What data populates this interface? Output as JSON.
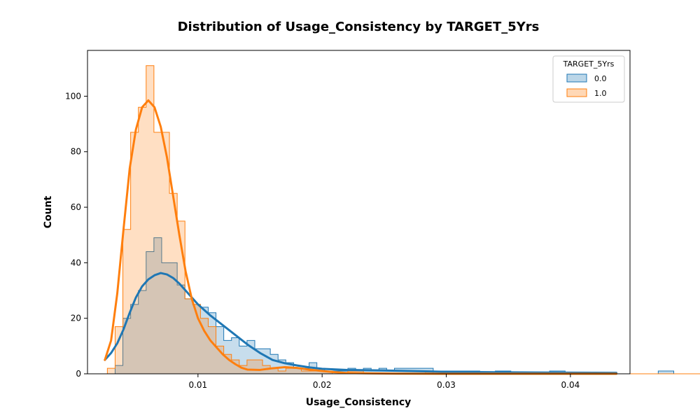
{
  "chart_data": {
    "type": "histogram",
    "title": "Distribution of Usage_Consistency by TARGET_5Yrs",
    "xlabel": "Usage_Consistency",
    "ylabel": "Count",
    "xlim": [
      0.0011,
      0.0448
    ],
    "ylim": [
      0,
      116.5
    ],
    "xticks": [
      0.01,
      0.02,
      0.03,
      0.04
    ],
    "xtick_labels": [
      "0.01",
      "0.02",
      "0.03",
      "0.04"
    ],
    "yticks": [
      0,
      20,
      40,
      60,
      80,
      100
    ],
    "ytick_labels": [
      "0",
      "20",
      "40",
      "60",
      "80",
      "100"
    ],
    "grid": false,
    "legend": {
      "title": "TARGET_5Yrs",
      "placement": "top-right"
    },
    "bin_start": 0.0027,
    "bin_width": 0.000625,
    "series": [
      {
        "name": "0.0",
        "color": "#1f77b4",
        "fill_alpha": 0.25,
        "counts": [
          0,
          3,
          20,
          25,
          30,
          44,
          49,
          40,
          40,
          32,
          27,
          25,
          24,
          22,
          17,
          12,
          13,
          10,
          12,
          9,
          9,
          7,
          5,
          4,
          2,
          2,
          4,
          2,
          1,
          1,
          1,
          2,
          1,
          2,
          1,
          2,
          1,
          2,
          2,
          2,
          2,
          2,
          1,
          1,
          1,
          1,
          1,
          1,
          0,
          0,
          1,
          1,
          0,
          0,
          0,
          0,
          0,
          1,
          1,
          0,
          0,
          0,
          0,
          0,
          0,
          0,
          0,
          0,
          0,
          0,
          0,
          1,
          1,
          0,
          0,
          0,
          0,
          0,
          0,
          0,
          0,
          0,
          1
        ],
        "kde": [
          [
            0.0025,
            5
          ],
          [
            0.003,
            7.5
          ],
          [
            0.0035,
            11
          ],
          [
            0.004,
            16
          ],
          [
            0.0045,
            22
          ],
          [
            0.005,
            27.5
          ],
          [
            0.0055,
            31.5
          ],
          [
            0.006,
            34
          ],
          [
            0.0065,
            35.5
          ],
          [
            0.007,
            36.3
          ],
          [
            0.0075,
            35.8
          ],
          [
            0.008,
            34.5
          ],
          [
            0.0085,
            32.5
          ],
          [
            0.009,
            30
          ],
          [
            0.0095,
            27.5
          ],
          [
            0.01,
            25
          ],
          [
            0.011,
            21
          ],
          [
            0.012,
            17.5
          ],
          [
            0.013,
            14
          ],
          [
            0.014,
            10.5
          ],
          [
            0.015,
            7.5
          ],
          [
            0.016,
            5
          ],
          [
            0.017,
            3.8
          ],
          [
            0.018,
            3
          ],
          [
            0.019,
            2.3
          ],
          [
            0.02,
            1.8
          ],
          [
            0.022,
            1.4
          ],
          [
            0.025,
            1.2
          ],
          [
            0.028,
            0.9
          ],
          [
            0.03,
            0.7
          ],
          [
            0.033,
            0.6
          ],
          [
            0.036,
            0.5
          ],
          [
            0.04,
            0.4
          ],
          [
            0.0437,
            0.35
          ]
        ]
      },
      {
        "name": "1.0",
        "color": "#ff7f0e",
        "fill_alpha": 0.25,
        "counts": [
          2,
          17,
          52,
          87,
          96,
          111,
          87,
          87,
          65,
          55,
          27,
          25,
          20,
          17,
          10,
          7,
          5,
          3,
          5,
          5,
          3,
          2,
          1,
          2,
          2,
          1,
          1,
          1,
          1,
          0,
          0,
          1,
          1,
          0,
          0,
          0,
          0,
          0,
          0,
          0,
          0,
          1,
          0,
          0,
          0,
          0,
          0,
          0,
          0,
          0,
          0,
          0,
          0,
          0,
          0,
          0,
          0,
          0,
          0,
          0,
          0,
          0,
          0,
          0,
          0,
          0,
          0,
          0,
          0,
          0,
          0,
          0,
          0,
          0,
          0,
          0,
          0,
          0,
          0,
          0,
          0,
          0,
          0
        ],
        "kde": [
          [
            0.0025,
            5
          ],
          [
            0.003,
            12
          ],
          [
            0.0035,
            29
          ],
          [
            0.004,
            52
          ],
          [
            0.0045,
            74
          ],
          [
            0.005,
            88
          ],
          [
            0.0055,
            96
          ],
          [
            0.006,
            98.5
          ],
          [
            0.0065,
            96
          ],
          [
            0.007,
            89
          ],
          [
            0.0075,
            78
          ],
          [
            0.008,
            64
          ],
          [
            0.0085,
            50
          ],
          [
            0.009,
            37
          ],
          [
            0.0095,
            27
          ],
          [
            0.01,
            20
          ],
          [
            0.0105,
            15.5
          ],
          [
            0.011,
            12
          ],
          [
            0.0115,
            9.5
          ],
          [
            0.012,
            7
          ],
          [
            0.0125,
            5
          ],
          [
            0.013,
            3.5
          ],
          [
            0.0135,
            2.2
          ],
          [
            0.014,
            1.5
          ],
          [
            0.015,
            1.4
          ],
          [
            0.016,
            2
          ],
          [
            0.017,
            2.4
          ],
          [
            0.018,
            2.1
          ],
          [
            0.019,
            1.5
          ],
          [
            0.02,
            1.0
          ],
          [
            0.021,
            0.6
          ],
          [
            0.022,
            0.3
          ],
          [
            0.024,
            0.15
          ],
          [
            0.026,
            0.05
          ],
          [
            0.03,
            0.01
          ],
          [
            0.035,
            0
          ],
          [
            0.04,
            0
          ],
          [
            0.0437,
            0
          ]
        ]
      }
    ]
  }
}
